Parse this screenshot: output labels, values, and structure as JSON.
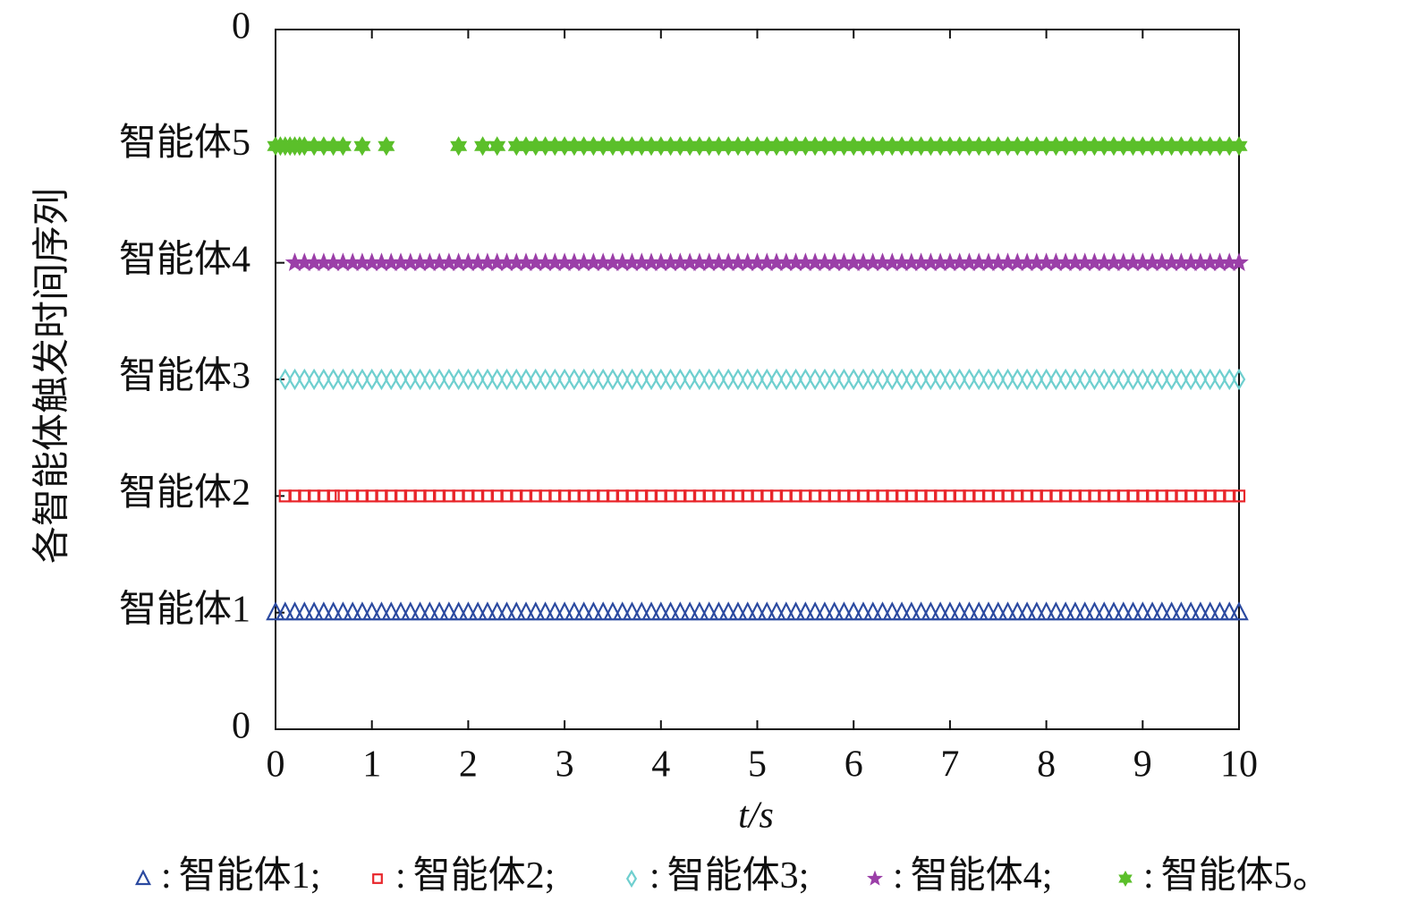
{
  "chart_data": {
    "type": "event",
    "xlabel": "t/s",
    "ylabel": "各智能体触发时间序列",
    "xlim": [
      0,
      10
    ],
    "xticks": [
      0,
      1,
      2,
      3,
      4,
      5,
      6,
      7,
      8,
      9,
      10
    ],
    "ylim": [
      0,
      6
    ],
    "yticks": [
      0,
      {
        "value": 1,
        "label": "智能体1"
      },
      {
        "value": 2,
        "label": "智能体2"
      },
      {
        "value": 3,
        "label": "智能体3"
      },
      {
        "value": 4,
        "label": "智能体4"
      },
      {
        "value": 5,
        "label": "智能体5"
      },
      {
        "value": 6,
        "label": "0"
      }
    ],
    "legend": {
      "separator": ":",
      "ends": [
        ";",
        ";",
        ";",
        ";",
        "。"
      ]
    },
    "series": [
      {
        "name": "智能体1",
        "color": "#2b4aa0",
        "marker": "triangle",
        "y": 1,
        "x": [
          0,
          0.1,
          0.2,
          0.3,
          0.4,
          0.5,
          0.6,
          0.7,
          0.8,
          0.9,
          1,
          1.1,
          1.2,
          1.3,
          1.4,
          1.5,
          1.6,
          1.7,
          1.8,
          1.9,
          2,
          2.1,
          2.2,
          2.3,
          2.4,
          2.5,
          2.6,
          2.7,
          2.8,
          2.9,
          3,
          3.1,
          3.2,
          3.3,
          3.4,
          3.5,
          3.6,
          3.7,
          3.8,
          3.9,
          4,
          4.1,
          4.2,
          4.3,
          4.4,
          4.5,
          4.6,
          4.7,
          4.8,
          4.9,
          5,
          5.1,
          5.2,
          5.3,
          5.4,
          5.5,
          5.6,
          5.7,
          5.8,
          5.9,
          6,
          6.1,
          6.2,
          6.3,
          6.4,
          6.5,
          6.6,
          6.7,
          6.8,
          6.9,
          7,
          7.1,
          7.2,
          7.3,
          7.4,
          7.5,
          7.6,
          7.7,
          7.8,
          7.9,
          8,
          8.1,
          8.2,
          8.3,
          8.4,
          8.5,
          8.6,
          8.7,
          8.8,
          8.9,
          9,
          9.1,
          9.2,
          9.3,
          9.4,
          9.5,
          9.6,
          9.7,
          9.8,
          9.9,
          10
        ]
      },
      {
        "name": "智能体2",
        "color": "#e8262b",
        "marker": "square",
        "y": 2,
        "x": [
          0.1,
          0.2,
          0.3,
          0.4,
          0.5,
          0.6,
          0.68,
          0.8,
          0.9,
          1,
          1.1,
          1.2,
          1.3,
          1.4,
          1.5,
          1.6,
          1.7,
          1.8,
          1.9,
          2,
          2.1,
          2.2,
          2.3,
          2.4,
          2.5,
          2.6,
          2.7,
          2.8,
          2.9,
          3,
          3.1,
          3.2,
          3.3,
          3.4,
          3.5,
          3.6,
          3.7,
          3.8,
          3.9,
          4,
          4.1,
          4.2,
          4.3,
          4.4,
          4.5,
          4.6,
          4.7,
          4.8,
          4.9,
          5,
          5.1,
          5.2,
          5.3,
          5.4,
          5.5,
          5.6,
          5.7,
          5.8,
          5.9,
          6,
          6.1,
          6.2,
          6.3,
          6.4,
          6.5,
          6.6,
          6.7,
          6.8,
          6.9,
          7,
          7.1,
          7.2,
          7.3,
          7.4,
          7.5,
          7.6,
          7.7,
          7.8,
          7.9,
          8,
          8.1,
          8.2,
          8.3,
          8.4,
          8.5,
          8.6,
          8.7,
          8.8,
          8.9,
          9,
          9.1,
          9.2,
          9.3,
          9.4,
          9.5,
          9.6,
          9.7,
          9.8,
          9.9,
          10
        ]
      },
      {
        "name": "智能体3",
        "color": "#6fcfcf",
        "marker": "diamond",
        "y": 3,
        "x": [
          0.1,
          0.2,
          0.3,
          0.4,
          0.5,
          0.6,
          0.7,
          0.8,
          0.9,
          1,
          1.1,
          1.2,
          1.3,
          1.4,
          1.5,
          1.6,
          1.7,
          1.8,
          1.9,
          2,
          2.1,
          2.2,
          2.3,
          2.4,
          2.5,
          2.6,
          2.7,
          2.8,
          2.9,
          3,
          3.1,
          3.2,
          3.3,
          3.4,
          3.5,
          3.6,
          3.7,
          3.8,
          3.9,
          4,
          4.1,
          4.2,
          4.3,
          4.4,
          4.5,
          4.6,
          4.7,
          4.8,
          4.9,
          5,
          5.1,
          5.2,
          5.3,
          5.4,
          5.5,
          5.6,
          5.7,
          5.8,
          5.9,
          6,
          6.1,
          6.2,
          6.3,
          6.4,
          6.5,
          6.6,
          6.7,
          6.8,
          6.9,
          7,
          7.1,
          7.2,
          7.3,
          7.4,
          7.5,
          7.6,
          7.7,
          7.8,
          7.9,
          8,
          8.1,
          8.2,
          8.3,
          8.4,
          8.5,
          8.6,
          8.7,
          8.8,
          8.9,
          9,
          9.1,
          9.2,
          9.3,
          9.4,
          9.5,
          9.6,
          9.7,
          9.8,
          9.9,
          10
        ]
      },
      {
        "name": "智能体4",
        "color": "#9b3fa8",
        "marker": "star",
        "y": 4,
        "x": [
          0.2,
          0.3,
          0.4,
          0.5,
          0.6,
          0.7,
          0.8,
          0.9,
          1,
          1.1,
          1.2,
          1.3,
          1.4,
          1.5,
          1.6,
          1.7,
          1.8,
          1.9,
          2,
          2.1,
          2.2,
          2.3,
          2.4,
          2.5,
          2.6,
          2.7,
          2.8,
          2.9,
          3,
          3.1,
          3.2,
          3.3,
          3.4,
          3.5,
          3.6,
          3.7,
          3.8,
          3.9,
          4,
          4.1,
          4.2,
          4.3,
          4.4,
          4.5,
          4.6,
          4.7,
          4.8,
          4.9,
          5,
          5.1,
          5.2,
          5.3,
          5.4,
          5.5,
          5.6,
          5.7,
          5.8,
          5.9,
          6,
          6.1,
          6.2,
          6.3,
          6.4,
          6.5,
          6.6,
          6.7,
          6.8,
          6.9,
          7,
          7.1,
          7.2,
          7.3,
          7.4,
          7.5,
          7.6,
          7.7,
          7.8,
          7.9,
          8,
          8.1,
          8.2,
          8.3,
          8.4,
          8.5,
          8.6,
          8.7,
          8.8,
          8.9,
          9,
          9.1,
          9.2,
          9.3,
          9.4,
          9.5,
          9.6,
          9.7,
          9.8,
          9.9,
          10
        ]
      },
      {
        "name": "智能体5",
        "color": "#5bbf2a",
        "marker": "hexagram",
        "y": 5,
        "x": [
          0,
          0.05,
          0.1,
          0.15,
          0.2,
          0.25,
          0.3,
          0.4,
          0.5,
          0.6,
          0.7,
          0.9,
          1.15,
          1.9,
          2.15,
          2.3,
          2.5,
          2.6,
          2.7,
          2.8,
          2.9,
          3,
          3.1,
          3.2,
          3.3,
          3.4,
          3.5,
          3.6,
          3.7,
          3.8,
          3.9,
          4,
          4.1,
          4.2,
          4.3,
          4.4,
          4.5,
          4.6,
          4.7,
          4.8,
          4.9,
          5,
          5.1,
          5.2,
          5.3,
          5.4,
          5.5,
          5.6,
          5.7,
          5.8,
          5.9,
          6,
          6.1,
          6.2,
          6.3,
          6.4,
          6.5,
          6.6,
          6.7,
          6.8,
          6.9,
          7,
          7.1,
          7.2,
          7.3,
          7.4,
          7.5,
          7.6,
          7.7,
          7.8,
          7.9,
          8,
          8.1,
          8.2,
          8.3,
          8.4,
          8.5,
          8.6,
          8.7,
          8.8,
          8.9,
          9,
          9.1,
          9.2,
          9.3,
          9.4,
          9.5,
          9.6,
          9.7,
          9.8,
          9.9,
          10
        ]
      }
    ]
  }
}
